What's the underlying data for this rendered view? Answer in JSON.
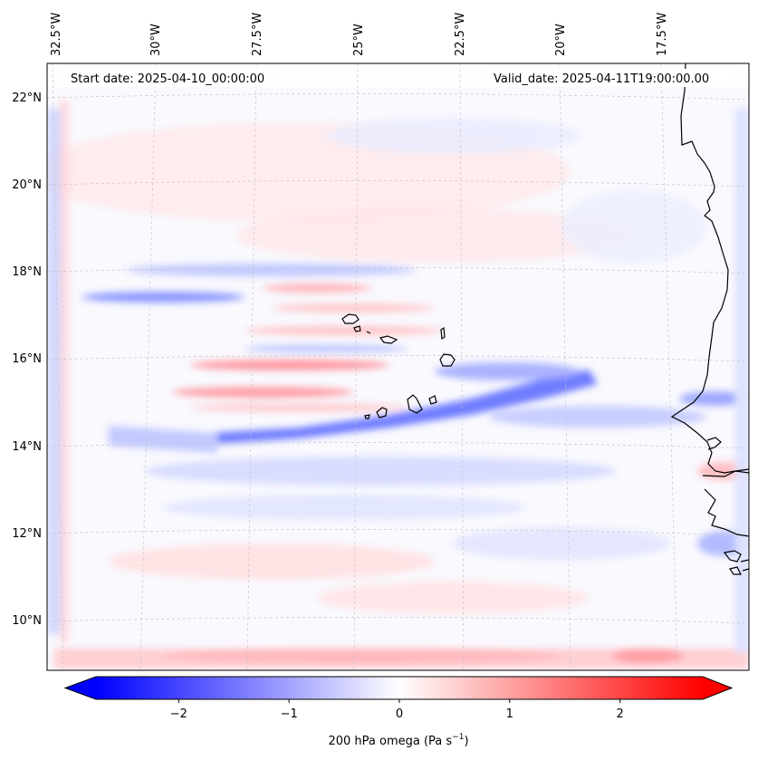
{
  "map": {
    "start_date": "Start date: 2025-04-10_00:00:00",
    "valid_date": "Valid_date: 2025-04-11T19:00:00.00",
    "lon_labels": [
      "32.5°W",
      "30°W",
      "27.5°W",
      "25°W",
      "22.5°W",
      "20°W",
      "17.5°W"
    ],
    "lat_labels": [
      "22°N",
      "20°N",
      "18°N",
      "16°N",
      "14°N",
      "12°N",
      "10°N"
    ]
  },
  "colorbar": {
    "label_prefix": "200 hPa omega (Pa s",
    "label_exp": "−1",
    "label_suffix": ")",
    "ticks": [
      "−2",
      "−1",
      "0",
      "1",
      "2"
    ],
    "min": -2.75,
    "max": 2.75,
    "tick_values": [
      -2,
      -1,
      0,
      1,
      2
    ]
  },
  "colors": {
    "negative": "#0000ff",
    "neutral": "#ffffff",
    "positive": "#ff0000",
    "coast": "#000000"
  }
}
